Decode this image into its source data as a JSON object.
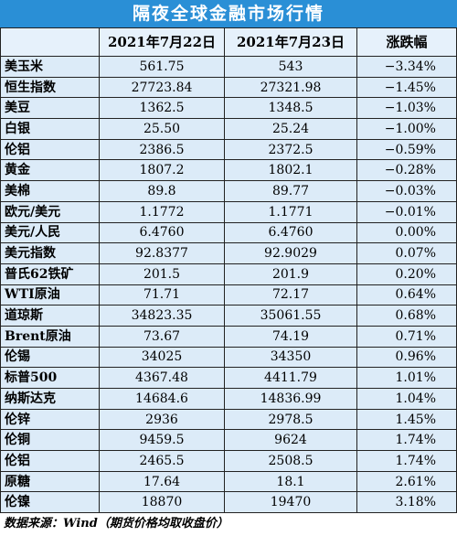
{
  "title": "隔夜全球金融市场行情",
  "table": {
    "header": [
      "",
      "2021年7月22日",
      "2021年7月23日",
      "涨跌幅"
    ],
    "rows": [
      [
        "美玉米",
        "561.75",
        "543",
        "−3.34%"
      ],
      [
        "恒生指数",
        "27723.84",
        "27321.98",
        "−1.45%"
      ],
      [
        "美豆",
        "1362.5",
        "1348.5",
        "−1.03%"
      ],
      [
        "白银",
        "25.50",
        "25.24",
        "−1.00%"
      ],
      [
        "伦铝",
        "2386.5",
        "2372.5",
        "−0.59%"
      ],
      [
        "黄金",
        "1807.2",
        "1802.1",
        "−0.28%"
      ],
      [
        "美棉",
        "89.8",
        "89.77",
        "−0.03%"
      ],
      [
        "欧元/美元",
        "1.1772",
        "1.1771",
        "−0.01%"
      ],
      [
        "美元/人民",
        "6.4760",
        "6.4760",
        "0.00%"
      ],
      [
        "美元指数",
        "92.8377",
        "92.9029",
        "0.07%"
      ],
      [
        "普氏62铁矿",
        "201.5",
        "201.9",
        "0.20%"
      ],
      [
        "WTI原油",
        "71.71",
        "72.17",
        "0.64%"
      ],
      [
        "道琼斯",
        "34823.35",
        "35061.55",
        "0.68%"
      ],
      [
        "Brent原油",
        "73.67",
        "74.19",
        "0.71%"
      ],
      [
        "伦锡",
        "34025",
        "34350",
        "0.96%"
      ],
      [
        "标普500",
        "4367.48",
        "4411.79",
        "1.01%"
      ],
      [
        "纳斯达克",
        "14684.6",
        "14836.99",
        "1.04%"
      ],
      [
        "伦锌",
        "2936",
        "2978.5",
        "1.45%"
      ],
      [
        "伦铜",
        "9459.5",
        "9624",
        "1.74%"
      ],
      [
        "伦铝",
        "2465.5",
        "2508.5",
        "1.74%"
      ],
      [
        "原糖",
        "17.64",
        "18.1",
        "2.61%"
      ],
      [
        "伦镍",
        "18870",
        "19470",
        "3.18%"
      ]
    ]
  },
  "footer": "数据来源：Wind（期货价格均取收盘价）"
}
